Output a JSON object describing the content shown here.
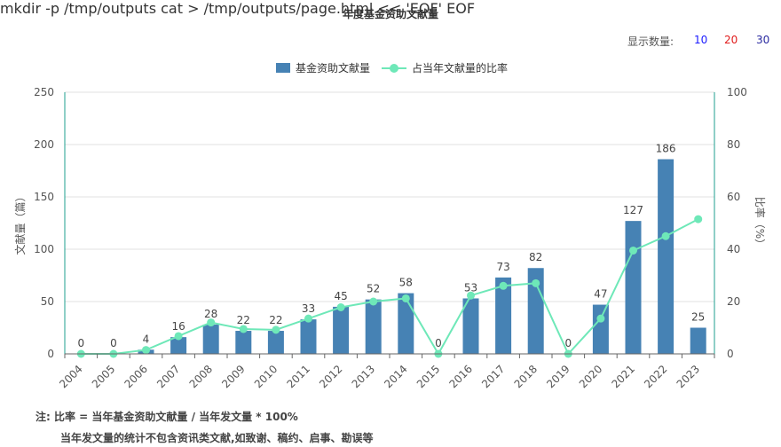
{
  "title": "年度基金资助文献量",
  "display_count": {
    "label": "显示数量:",
    "options": [
      {
        "label": "10",
        "color": "#1a1aff"
      },
      {
        "label": "20",
        "color": "#e01b1b"
      },
      {
        "label": "30",
        "color": "#2a2aa0"
      }
    ]
  },
  "legend": {
    "bar_label": "基金资助文献量",
    "line_label": "占当年文献量的比率"
  },
  "colors": {
    "bar": "#4682b4",
    "line": "#6ee8b8",
    "axis": "#1f9f8f",
    "grid": "#e0e0e0"
  },
  "chart_data": {
    "type": "bar",
    "categories": [
      "2004",
      "2005",
      "2006",
      "2007",
      "2008",
      "2009",
      "2010",
      "2011",
      "2012",
      "2013",
      "2014",
      "2015",
      "2016",
      "2017",
      "2018",
      "2019",
      "2020",
      "2021",
      "2022",
      "2023"
    ],
    "series": [
      {
        "name": "基金资助文献量",
        "type": "bar",
        "axis": "left",
        "values": [
          0,
          0,
          4,
          16,
          28,
          22,
          22,
          33,
          45,
          52,
          58,
          0,
          53,
          73,
          82,
          0,
          47,
          127,
          186,
          25
        ]
      },
      {
        "name": "占当年文献量的比率",
        "type": "line",
        "axis": "right",
        "values": [
          0,
          0,
          1.5,
          6.8,
          12,
          9.5,
          9.2,
          13.5,
          17.8,
          20,
          21.2,
          0,
          22.3,
          26,
          27,
          0,
          13.5,
          39.5,
          45,
          51.5
        ]
      }
    ],
    "ylabel": "文献量（篇）",
    "y2label": "比率（%）",
    "ylim": [
      0,
      250
    ],
    "y2lim": [
      0,
      100
    ],
    "yticks": [
      "0",
      "50",
      "100",
      "150",
      "200",
      "250"
    ],
    "y2ticks": [
      "0",
      "20",
      "40",
      "60",
      "80",
      "100"
    ],
    "grid": true,
    "legend_position": "top-center"
  },
  "notes": {
    "line1": "注:  比率 = 当年基金资助文献量 / 当年发文量 * 100%",
    "line2": "当年发文量的统计不包含资讯类文献,如致谢、稿约、启事、勘误等"
  }
}
